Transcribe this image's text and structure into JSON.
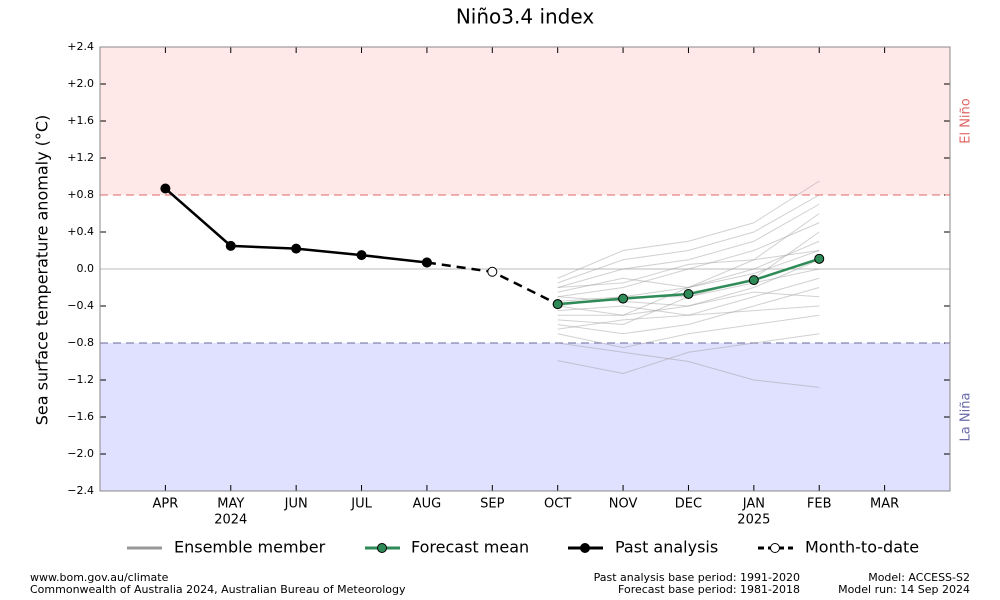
{
  "chart_data": {
    "type": "line",
    "title": "Niño3.4 index",
    "y_label": "Sea surface temperature anomaly (°C)",
    "categories": [
      "APR",
      "MAY",
      "JUN",
      "JUL",
      "AUG",
      "SEP",
      "OCT",
      "NOV",
      "DEC",
      "JAN",
      "FEB",
      "MAR"
    ],
    "x_sublabels": [
      null,
      "2024",
      null,
      null,
      null,
      null,
      null,
      null,
      null,
      "2025",
      null,
      null
    ],
    "xlim": [
      -1,
      12
    ],
    "ylim": [
      -2.4,
      2.4
    ],
    "yticks": [
      {
        "value": -2.4,
        "label": "−2.4"
      },
      {
        "value": -2.0,
        "label": "−2.0"
      },
      {
        "value": -1.6,
        "label": "−1.6"
      },
      {
        "value": -1.2,
        "label": "−1.2"
      },
      {
        "value": -0.8,
        "label": "−0.8"
      },
      {
        "value": -0.4,
        "label": "−0.4"
      },
      {
        "value": 0,
        "label": "0.0"
      },
      {
        "value": 0.4,
        "label": "+0.4"
      },
      {
        "value": 0.8,
        "label": "+0.8"
      },
      {
        "value": 1.2,
        "label": "+1.2"
      },
      {
        "value": 1.6,
        "label": "+1.6"
      },
      {
        "value": 2.0,
        "label": "+2.0"
      },
      {
        "value": 2.4,
        "label": "+2.4"
      }
    ],
    "el_nino": {
      "label": "El Niño",
      "threshold": 0.8,
      "color": "#ffe8e8",
      "line_color": "#e06666",
      "text_color": "#e06666"
    },
    "la_nina": {
      "label": "La Niña",
      "threshold": -0.8,
      "color": "#e0e0ff",
      "line_color": "#6a6a9a",
      "text_color": "#6a6aaa"
    },
    "ensemble": {
      "name": "Ensemble member",
      "color": "#999999",
      "members": [
        [
          null,
          null,
          null,
          null,
          null,
          null,
          -0.1,
          0.2,
          0.3,
          0.5,
          0.95,
          null
        ],
        [
          null,
          null,
          null,
          null,
          null,
          null,
          -0.2,
          0.0,
          0.1,
          0.3,
          0.7,
          null
        ],
        [
          null,
          null,
          null,
          null,
          null,
          null,
          -0.3,
          -0.2,
          0.0,
          0.2,
          0.5,
          null
        ],
        [
          null,
          null,
          null,
          null,
          null,
          null,
          -0.4,
          -0.3,
          -0.2,
          0.0,
          0.3,
          null
        ],
        [
          null,
          null,
          null,
          null,
          null,
          null,
          -0.5,
          -0.5,
          -0.4,
          -0.2,
          0.1,
          null
        ],
        [
          null,
          null,
          null,
          null,
          null,
          null,
          -0.6,
          -0.7,
          -0.6,
          -0.4,
          -0.2,
          null
        ],
        [
          null,
          null,
          null,
          null,
          null,
          null,
          -0.99,
          -1.13,
          -0.9,
          -0.8,
          -0.7,
          null
        ],
        [
          null,
          null,
          null,
          null,
          null,
          null,
          -0.8,
          -0.9,
          -1.0,
          -1.2,
          -1.28,
          null
        ],
        [
          null,
          null,
          null,
          null,
          null,
          null,
          -0.35,
          -0.3,
          -0.3,
          -0.15,
          0.0,
          null
        ],
        [
          null,
          null,
          null,
          null,
          null,
          null,
          -0.25,
          -0.1,
          -0.2,
          -0.05,
          0.2,
          null
        ],
        [
          null,
          null,
          null,
          null,
          null,
          null,
          -0.45,
          -0.4,
          -0.5,
          -0.3,
          -0.1,
          null
        ],
        [
          null,
          null,
          null,
          null,
          null,
          null,
          -0.7,
          -0.85,
          -0.7,
          -0.6,
          -0.5,
          null
        ],
        [
          null,
          null,
          null,
          null,
          null,
          null,
          -0.15,
          0.1,
          0.2,
          0.4,
          0.8,
          null
        ],
        [
          null,
          null,
          null,
          null,
          null,
          null,
          -0.55,
          -0.6,
          -0.3,
          -0.1,
          0.4,
          null
        ],
        [
          null,
          null,
          null,
          null,
          null,
          null,
          -0.3,
          -0.35,
          -0.4,
          -0.25,
          -0.3,
          null
        ],
        [
          null,
          null,
          null,
          null,
          null,
          null,
          -0.2,
          -0.15,
          0.05,
          0.1,
          0.6,
          null
        ],
        [
          null,
          null,
          null,
          null,
          null,
          null,
          -0.4,
          -0.5,
          -0.2,
          0.1,
          0.2,
          null
        ],
        [
          null,
          null,
          null,
          null,
          null,
          null,
          -0.65,
          -0.55,
          -0.5,
          -0.45,
          -0.4,
          null
        ]
      ]
    },
    "series": [
      {
        "name": "Month-to-date",
        "color": "#000000",
        "marker_fill": "#ffffff",
        "dashed": true,
        "values": [
          null,
          null,
          null,
          null,
          0.07,
          -0.03,
          -0.38,
          null,
          null,
          null,
          null,
          null
        ]
      },
      {
        "name": "Past analysis",
        "color": "#000000",
        "marker_fill": "#000000",
        "values": [
          0.87,
          0.25,
          0.22,
          0.15,
          0.07,
          null,
          null,
          null,
          null,
          null,
          null,
          null
        ]
      },
      {
        "name": "Forecast mean",
        "color": "#2e8b57",
        "marker_fill": "#2e8b57",
        "values": [
          null,
          null,
          null,
          null,
          null,
          null,
          -0.38,
          -0.32,
          -0.27,
          -0.12,
          0.11,
          null
        ]
      }
    ],
    "footer": {
      "left": [
        "www.bom.gov.au/climate",
        "Commonwealth of Australia 2024, Australian Bureau of Meteorology"
      ],
      "middle": [
        "Past analysis base period: 1991-2020",
        "Forecast base period: 1981-2018"
      ],
      "right": [
        "Model: ACCESS-S2",
        "Model run: 14 Sep 2024"
      ]
    }
  }
}
